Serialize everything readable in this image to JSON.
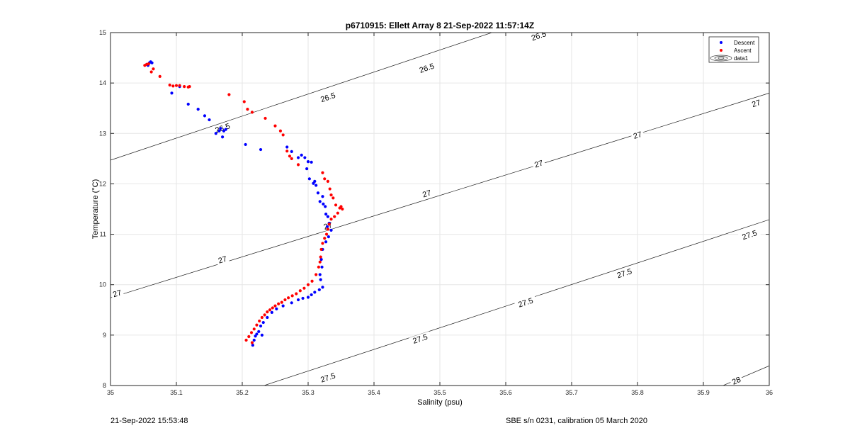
{
  "chart_data": {
    "type": "scatter",
    "title": "p6710915: Ellett Array 8 21-Sep-2022 11:57:14Z",
    "xlabel": "Salinity (psu)",
    "ylabel": "Temperature (°C)",
    "xlim": [
      35,
      36
    ],
    "ylim": [
      8,
      15
    ],
    "xticks": [
      "35",
      "35.1",
      "35.2",
      "35.3",
      "35.4",
      "35.5",
      "35.6",
      "35.7",
      "35.8",
      "35.9",
      "36"
    ],
    "yticks": [
      "8",
      "9",
      "10",
      "11",
      "12",
      "13",
      "14",
      "15"
    ],
    "grid": true,
    "legend_position": "top-right",
    "series": [
      {
        "name": "Descent",
        "color": "#0000ff",
        "marker": "dot",
        "x": [
          35.057,
          35.059,
          35.061,
          35.063,
          35.055,
          35.093,
          35.105,
          35.118,
          35.133,
          35.143,
          35.15,
          35.16,
          35.165,
          35.17,
          35.172,
          35.167,
          35.175,
          35.205,
          35.228,
          35.268,
          35.275,
          35.285,
          35.29,
          35.295,
          35.3,
          35.298,
          35.305,
          35.302,
          35.31,
          35.308,
          35.315,
          35.312,
          35.318,
          35.322,
          35.323,
          35.326,
          35.327,
          35.33,
          35.332,
          35.329,
          35.335,
          35.331,
          35.327,
          35.322,
          35.32,
          35.321,
          35.318,
          35.319,
          35.322,
          35.317,
          35.31,
          35.305,
          35.3,
          35.292,
          35.285,
          35.275,
          35.262,
          35.252,
          35.245,
          35.238,
          35.232,
          35.228,
          35.225,
          35.222,
          35.22,
          35.218,
          35.216,
          35.23
        ],
        "y": [
          14.35,
          14.4,
          14.42,
          14.4,
          14.37,
          13.8,
          13.93,
          13.58,
          13.48,
          13.35,
          13.27,
          13.0,
          13.05,
          12.93,
          13.05,
          13.1,
          13.08,
          12.78,
          12.68,
          12.73,
          12.64,
          12.52,
          12.57,
          12.52,
          12.44,
          12.3,
          12.43,
          12.1,
          12.05,
          12.01,
          11.82,
          11.97,
          11.65,
          11.75,
          11.6,
          11.55,
          11.4,
          11.35,
          11.22,
          11.15,
          11.08,
          10.95,
          10.85,
          10.7,
          10.5,
          10.35,
          10.2,
          10.1,
          9.95,
          9.9,
          9.85,
          9.8,
          9.75,
          9.73,
          9.7,
          9.64,
          9.58,
          9.52,
          9.45,
          9.35,
          9.25,
          9.18,
          9.07,
          9.02,
          8.98,
          8.9,
          8.8,
          9.0
        ]
      },
      {
        "name": "Ascent",
        "color": "#ff0000",
        "marker": "dot",
        "x": [
          35.052,
          35.055,
          35.058,
          35.062,
          35.065,
          35.075,
          35.09,
          35.095,
          35.1,
          35.105,
          35.112,
          35.118,
          35.12,
          35.18,
          35.203,
          35.208,
          35.215,
          35.235,
          35.25,
          35.258,
          35.262,
          35.268,
          35.272,
          35.275,
          35.285,
          35.322,
          35.325,
          35.33,
          35.333,
          35.335,
          35.338,
          35.342,
          35.348,
          35.35,
          35.352,
          35.345,
          35.34,
          35.335,
          35.332,
          35.33,
          35.328,
          35.325,
          35.322,
          35.32,
          35.319,
          35.318,
          35.316,
          35.312,
          35.306,
          35.3,
          35.294,
          35.288,
          35.282,
          35.276,
          35.27,
          35.265,
          35.26,
          35.255,
          35.25,
          35.246,
          35.242,
          35.238,
          35.234,
          35.23,
          35.226,
          35.222,
          35.218,
          35.214,
          35.21,
          35.206,
          35.215
        ],
        "y": [
          14.35,
          14.37,
          14.38,
          14.22,
          14.28,
          14.13,
          13.96,
          13.94,
          13.95,
          13.95,
          13.93,
          13.92,
          13.93,
          13.77,
          13.63,
          13.48,
          13.42,
          13.3,
          13.15,
          13.05,
          12.97,
          12.65,
          12.55,
          12.5,
          12.38,
          12.22,
          12.1,
          12.05,
          11.9,
          11.78,
          11.72,
          11.58,
          11.52,
          11.55,
          11.5,
          11.42,
          11.35,
          11.3,
          11.2,
          11.1,
          11.0,
          10.92,
          10.82,
          10.7,
          10.55,
          10.45,
          10.35,
          10.2,
          10.07,
          10.0,
          9.93,
          9.88,
          9.82,
          9.78,
          9.74,
          9.7,
          9.65,
          9.62,
          9.58,
          9.54,
          9.5,
          9.46,
          9.4,
          9.35,
          9.28,
          9.2,
          9.12,
          9.05,
          8.97,
          8.9,
          8.85
        ]
      }
    ],
    "legend": [
      {
        "name": "Descent",
        "color": "#0000ff",
        "marker": "dot"
      },
      {
        "name": "Ascent",
        "color": "#ff0000",
        "marker": "dot"
      },
      {
        "name": "data1",
        "marker": "contour"
      }
    ],
    "contours": [
      {
        "level": 26.5,
        "label": "26.5",
        "from": [
          35.0,
          12.47
        ],
        "to": [
          36.0,
          16.84
        ],
        "label_points": [
          [
            35.17,
            13.11
          ],
          [
            35.33,
            13.72
          ],
          [
            35.48,
            14.3
          ],
          [
            35.65,
            14.94
          ]
        ]
      },
      {
        "level": 27,
        "label": "27",
        "from": [
          35.0,
          9.74
        ],
        "to": [
          36.0,
          13.8
        ],
        "label_points": [
          [
            35.01,
            9.83
          ],
          [
            35.17,
            10.5
          ],
          [
            35.33,
            11.17
          ],
          [
            35.48,
            11.81
          ],
          [
            35.65,
            12.4
          ],
          [
            35.8,
            12.97
          ],
          [
            35.98,
            13.6
          ]
        ]
      },
      {
        "level": 27.5,
        "label": "27.5",
        "from": [
          35.0,
          7.0
        ],
        "to": [
          36.0,
          11.29
        ],
        "label_points": [
          [
            35.33,
            8.16
          ],
          [
            35.47,
            8.93
          ],
          [
            35.63,
            9.65
          ],
          [
            35.78,
            10.23
          ],
          [
            35.97,
            10.99
          ]
        ]
      },
      {
        "level": 28,
        "label": "28",
        "from": [
          35.75,
          7.0
        ],
        "to": [
          36.0,
          8.39
        ],
        "label_points": [
          [
            35.95,
            8.1
          ]
        ]
      }
    ]
  },
  "footer": {
    "timestamp": "21-Sep-2022 15:53:48",
    "calibration": "SBE s/n 0231, calibration 05 March 2020"
  }
}
